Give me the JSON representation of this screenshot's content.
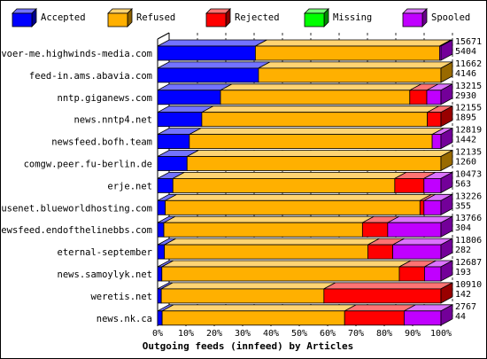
{
  "chart_data": {
    "type": "bar",
    "stacked": true,
    "three_d": true,
    "title": "Outgoing feeds (innfeed) by Articles",
    "xlim": [
      0,
      100
    ],
    "xticks": [
      "0%",
      "10%",
      "20%",
      "30%",
      "40%",
      "50%",
      "60%",
      "70%",
      "80%",
      "90%",
      "100%"
    ],
    "grid": "vertical dashed",
    "legend_position": "top",
    "series": [
      {
        "name": "Accepted",
        "color": "#0000ff"
      },
      {
        "name": "Refused",
        "color": "#ffb000"
      },
      {
        "name": "Rejected",
        "color": "#ff0000"
      },
      {
        "name": "Missing",
        "color": "#00ff00"
      },
      {
        "name": "Spooled",
        "color": "#c000ff"
      }
    ],
    "rows": [
      {
        "label": "voer-me.highwinds-media.com",
        "total": "15671",
        "accepted_count": "5404",
        "segments": [
          34.5,
          65.0,
          0,
          0,
          0.5
        ]
      },
      {
        "label": "feed-in.ams.abavia.com",
        "total": "11662",
        "accepted_count": "4146",
        "segments": [
          35.6,
          64.4,
          0,
          0,
          0
        ]
      },
      {
        "label": "nntp.giganews.com",
        "total": "13215",
        "accepted_count": "2930",
        "segments": [
          22.2,
          66.8,
          6.0,
          0,
          5.0
        ]
      },
      {
        "label": "news.nntp4.net",
        "total": "12155",
        "accepted_count": "1895",
        "segments": [
          15.6,
          79.6,
          4.8,
          0,
          0
        ]
      },
      {
        "label": "newsfeed.bofh.team",
        "total": "12819",
        "accepted_count": "1442",
        "segments": [
          11.2,
          85.7,
          0,
          0,
          3.1
        ]
      },
      {
        "label": "comgw.peer.fu-berlin.de",
        "total": "12135",
        "accepted_count": "1260",
        "segments": [
          10.4,
          89.6,
          0,
          0,
          0
        ]
      },
      {
        "label": "erje.net",
        "total": "10473",
        "accepted_count": "563",
        "segments": [
          5.4,
          78.3,
          10.3,
          0,
          6.0
        ]
      },
      {
        "label": "usenet.blueworldhosting.com",
        "total": "13226",
        "accepted_count": "355",
        "segments": [
          2.7,
          89.9,
          1.4,
          0,
          6.0
        ]
      },
      {
        "label": "newsfeed.endofthelinebbs.com",
        "total": "13766",
        "accepted_count": "304",
        "segments": [
          2.2,
          70.1,
          8.9,
          0,
          18.8
        ]
      },
      {
        "label": "eternal-september",
        "total": "11806",
        "accepted_count": "282",
        "segments": [
          2.4,
          71.8,
          8.8,
          0,
          17.0
        ]
      },
      {
        "label": "news.samoylyk.net",
        "total": "12687",
        "accepted_count": "193",
        "segments": [
          1.5,
          83.8,
          8.9,
          0,
          5.8
        ]
      },
      {
        "label": "weretis.net",
        "total": "10910",
        "accepted_count": "142",
        "segments": [
          1.3,
          57.4,
          41.3,
          0,
          0
        ]
      },
      {
        "label": "news.nk.ca",
        "total": "2767",
        "accepted_count": "44",
        "segments": [
          1.6,
          64.4,
          21.0,
          0,
          13.0
        ]
      }
    ]
  }
}
